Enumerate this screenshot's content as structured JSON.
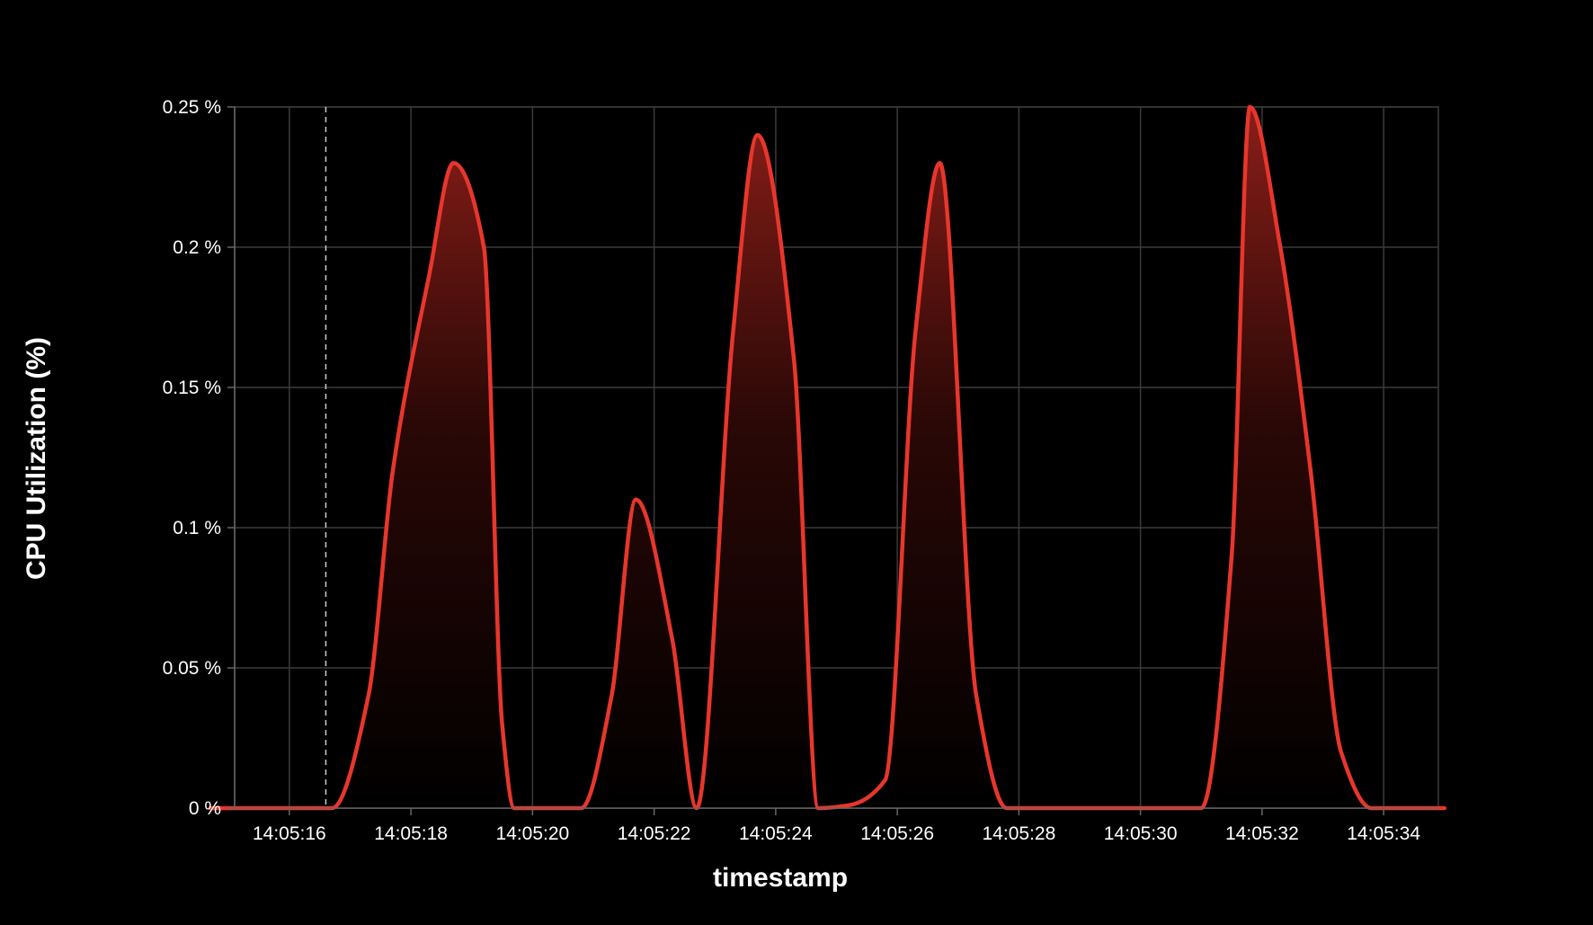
{
  "chart_data": {
    "type": "area",
    "title": "",
    "xlabel": "timestamp",
    "ylabel": "CPU Utilization (%)",
    "x_ticks": [
      "14:05:16",
      "14:05:18",
      "14:05:20",
      "14:05:22",
      "14:05:24",
      "14:05:26",
      "14:05:28",
      "14:05:30",
      "14:05:32",
      "14:05:34"
    ],
    "y_ticks": [
      "0 %",
      "0.05 %",
      "0.1 %",
      "0.15 %",
      "0.2 %",
      "0.25 %"
    ],
    "ylim": [
      0,
      0.25
    ],
    "xlim": [
      "14:05:15.1",
      "14:05:34.9"
    ],
    "grid": true,
    "marker_line_time": "14:05:16.6",
    "colors": {
      "background": "#000000",
      "line": "#e8362c",
      "grid": "#3a3a3a",
      "axis": "#666666",
      "text": "#ffffff"
    },
    "series": [
      {
        "x": [
          "14:05:14.7",
          "14:05:16.7",
          "14:05:17.3",
          "14:05:17.7",
          "14:05:18.3",
          "14:05:18.7",
          "14:05:19.2",
          "14:05:19.5",
          "14:05:19.7",
          "14:05:20.8",
          "14:05:21.3",
          "14:05:21.7",
          "14:05:22.3",
          "14:05:22.7",
          "14:05:23.3",
          "14:05:23.7",
          "14:05:24.3",
          "14:05:24.7",
          "14:05:25.2",
          "14:05:25.8",
          "14:05:26.3",
          "14:05:26.7",
          "14:05:27.3",
          "14:05:27.8",
          "14:05:31.0",
          "14:05:31.5",
          "14:05:31.8",
          "14:05:32.3",
          "14:05:32.8",
          "14:05:33.3",
          "14:05:33.8",
          "14:05:35.0"
        ],
        "values": [
          0,
          0,
          0.04,
          0.12,
          0.19,
          0.23,
          0.2,
          0.03,
          0,
          0,
          0.04,
          0.11,
          0.06,
          0,
          0.17,
          0.24,
          0.16,
          0,
          0.001,
          0.01,
          0.17,
          0.23,
          0.04,
          0,
          0,
          0.09,
          0.25,
          0.2,
          0.12,
          0.02,
          0,
          0
        ]
      }
    ]
  }
}
